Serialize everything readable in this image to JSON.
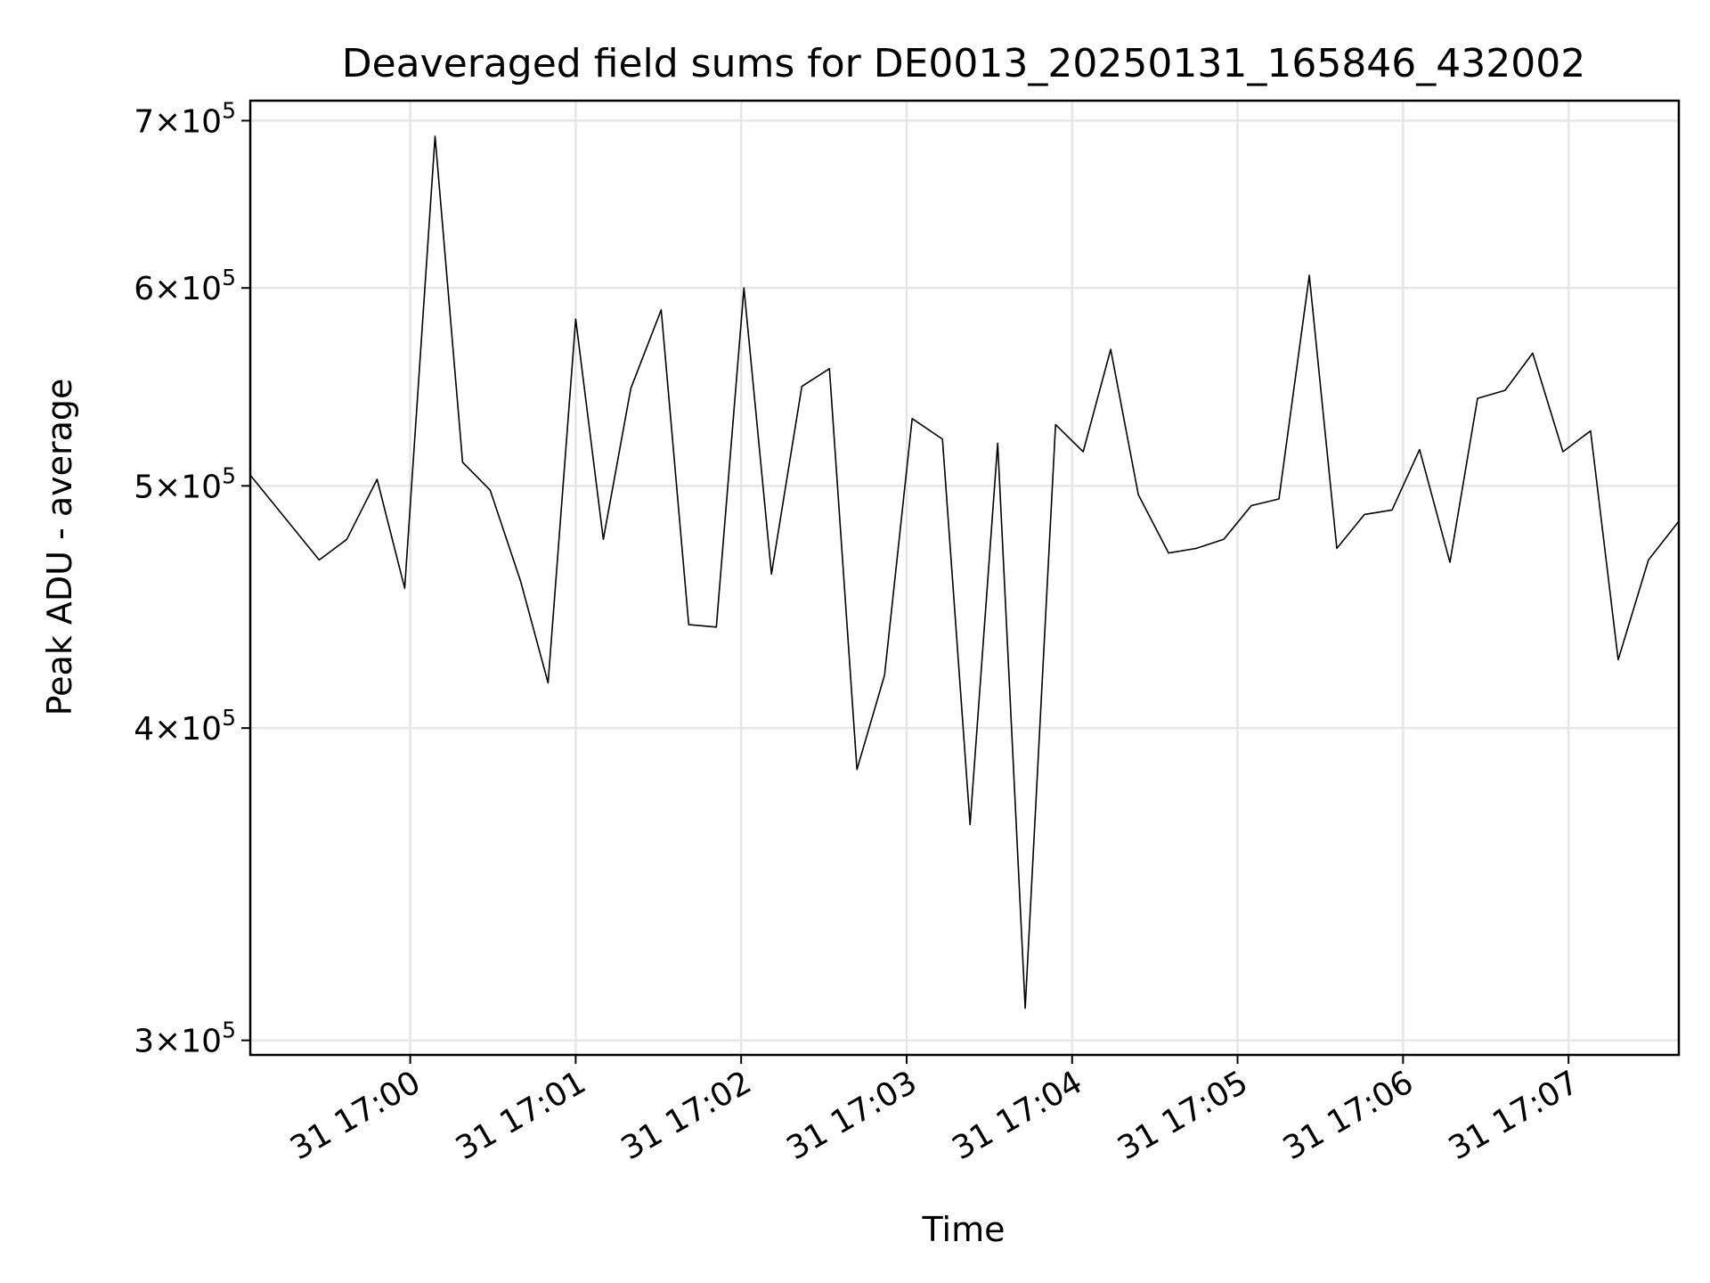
{
  "chart_data": {
    "type": "line",
    "title": "Deaveraged field sums for DE0013_20250131_165846_432002",
    "xlabel": "Time",
    "ylabel": "Peak ADU - average",
    "yscale": "log",
    "ylim": [
      296000,
      713000
    ],
    "xlim": [
      "2025-01-31 16:59:02",
      "2025-01-31 17:07:40"
    ],
    "grid": true,
    "x_ticks": [
      {
        "value": "2025-01-31 17:00:00",
        "label": "31 17:00"
      },
      {
        "value": "2025-01-31 17:01:00",
        "label": "31 17:01"
      },
      {
        "value": "2025-01-31 17:02:00",
        "label": "31 17:02"
      },
      {
        "value": "2025-01-31 17:03:00",
        "label": "31 17:03"
      },
      {
        "value": "2025-01-31 17:04:00",
        "label": "31 17:04"
      },
      {
        "value": "2025-01-31 17:05:00",
        "label": "31 17:05"
      },
      {
        "value": "2025-01-31 17:06:00",
        "label": "31 17:06"
      },
      {
        "value": "2025-01-31 17:07:00",
        "label": "31 17:07"
      }
    ],
    "y_ticks": [
      {
        "value": 300000,
        "mantissa": "3",
        "base": "10",
        "exp": "5"
      },
      {
        "value": 400000,
        "mantissa": "4",
        "base": "10",
        "exp": "5"
      },
      {
        "value": 500000,
        "mantissa": "5",
        "base": "10",
        "exp": "5"
      },
      {
        "value": 600000,
        "mantissa": "6",
        "base": "10",
        "exp": "5"
      },
      {
        "value": 700000,
        "mantissa": "7",
        "base": "10",
        "exp": "5"
      }
    ],
    "series": [
      {
        "x": [
          "2025-01-31 16:59:02",
          "2025-01-31 16:59:27",
          "2025-01-31 16:59:37",
          "2025-01-31 16:59:48",
          "2025-01-31 16:59:58",
          "2025-01-31 17:00:09",
          "2025-01-31 17:00:19",
          "2025-01-31 17:00:29",
          "2025-01-31 17:00:40",
          "2025-01-31 17:00:50",
          "2025-01-31 17:01:00",
          "2025-01-31 17:01:10",
          "2025-01-31 17:01:20",
          "2025-01-31 17:01:31",
          "2025-01-31 17:01:41",
          "2025-01-31 17:01:51",
          "2025-01-31 17:02:01",
          "2025-01-31 17:02:11",
          "2025-01-31 17:02:22",
          "2025-01-31 17:02:32",
          "2025-01-31 17:02:42",
          "2025-01-31 17:02:52",
          "2025-01-31 17:03:02",
          "2025-01-31 17:03:13",
          "2025-01-31 17:03:23",
          "2025-01-31 17:03:33",
          "2025-01-31 17:03:43",
          "2025-01-31 17:03:54",
          "2025-01-31 17:04:04",
          "2025-01-31 17:04:14",
          "2025-01-31 17:04:24",
          "2025-01-31 17:04:35",
          "2025-01-31 17:04:45",
          "2025-01-31 17:04:55",
          "2025-01-31 17:05:05",
          "2025-01-31 17:05:15",
          "2025-01-31 17:05:26",
          "2025-01-31 17:05:36",
          "2025-01-31 17:05:46",
          "2025-01-31 17:05:56",
          "2025-01-31 17:06:06",
          "2025-01-31 17:06:17",
          "2025-01-31 17:06:27",
          "2025-01-31 17:06:37",
          "2025-01-31 17:06:47",
          "2025-01-31 17:06:58",
          "2025-01-31 17:07:08",
          "2025-01-31 17:07:18",
          "2025-01-31 17:07:29",
          "2025-01-31 17:07:40"
        ],
        "values": [
          505000,
          467000,
          476000,
          503000,
          455000,
          690000,
          511000,
          498000,
          458000,
          417000,
          583000,
          476000,
          547000,
          588000,
          440000,
          439000,
          600000,
          461000,
          548000,
          557000,
          385000,
          420000,
          532000,
          522000,
          366000,
          520000,
          309000,
          529000,
          516000,
          567000,
          496000,
          470000,
          472000,
          476000,
          491000,
          494000,
          607000,
          472000,
          487000,
          489000,
          517000,
          466000,
          542000,
          546000,
          565000,
          516000,
          526000,
          426000,
          467000,
          484000
        ]
      }
    ]
  }
}
